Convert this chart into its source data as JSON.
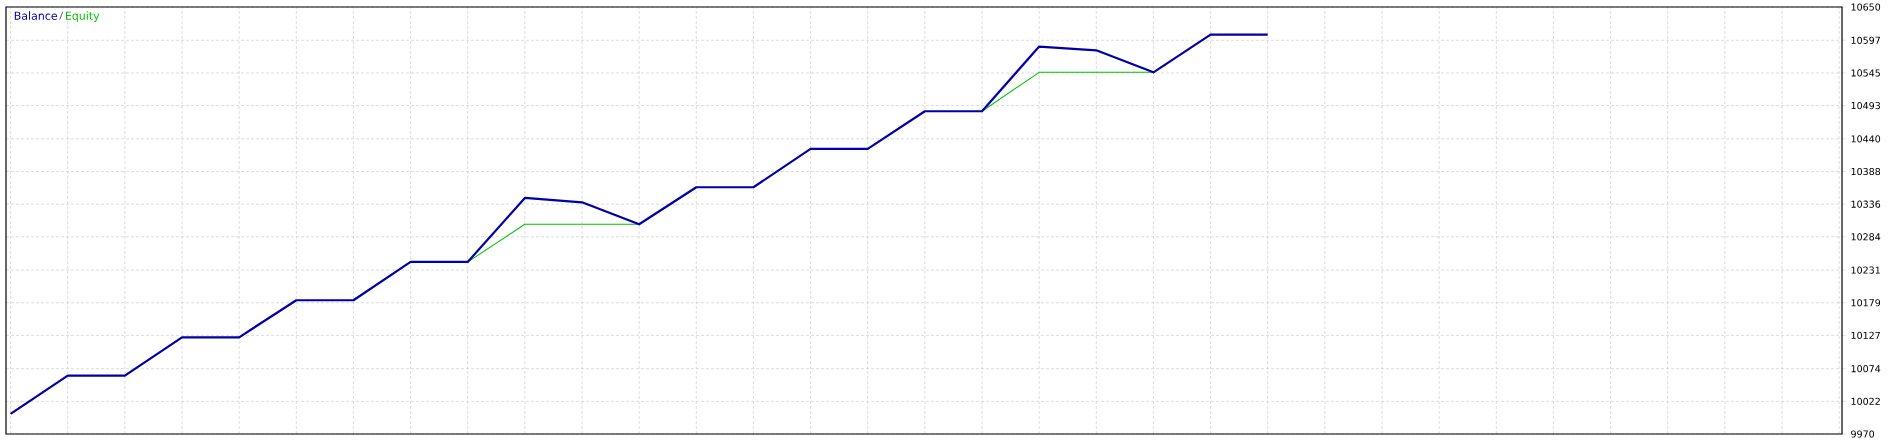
{
  "chart_data": {
    "type": "line",
    "categories": [
      null,
      null,
      null,
      null,
      null,
      null,
      null,
      null,
      null,
      null,
      null,
      null,
      null,
      null,
      null,
      null,
      null,
      null,
      null,
      null,
      null,
      null,
      null,
      null,
      null,
      null,
      null,
      null,
      null,
      null,
      null,
      null,
      null
    ],
    "series": [
      {
        "name": "Balance",
        "color": "#0000a8",
        "values": [
          10002,
          10063,
          10063,
          10124,
          10124,
          10183,
          10183,
          10244,
          10244,
          10346,
          10339,
          10304,
          10363,
          10363,
          10424,
          10424,
          10484,
          10484,
          10587,
          10581,
          10546,
          10606,
          10606,
          null,
          null,
          null,
          null,
          null,
          null,
          null,
          null,
          null,
          null
        ]
      },
      {
        "name": "Equity",
        "color": "#00c000",
        "values": [
          null,
          null,
          null,
          null,
          null,
          null,
          null,
          null,
          10244,
          10304,
          10304,
          10304,
          null,
          null,
          null,
          null,
          null,
          10484,
          10546,
          10546,
          10546,
          null,
          null,
          null,
          null,
          null,
          null,
          null,
          null,
          null,
          null,
          null,
          null
        ]
      }
    ],
    "ylim": [
      9970,
      10650
    ],
    "yticks": [
      9970,
      10022,
      10074,
      10127,
      10179,
      10231,
      10284,
      10336,
      10388,
      10440,
      10493,
      10545,
      10597,
      10650
    ],
    "grid": true,
    "legend": "top left",
    "tick_labels": "y"
  }
}
